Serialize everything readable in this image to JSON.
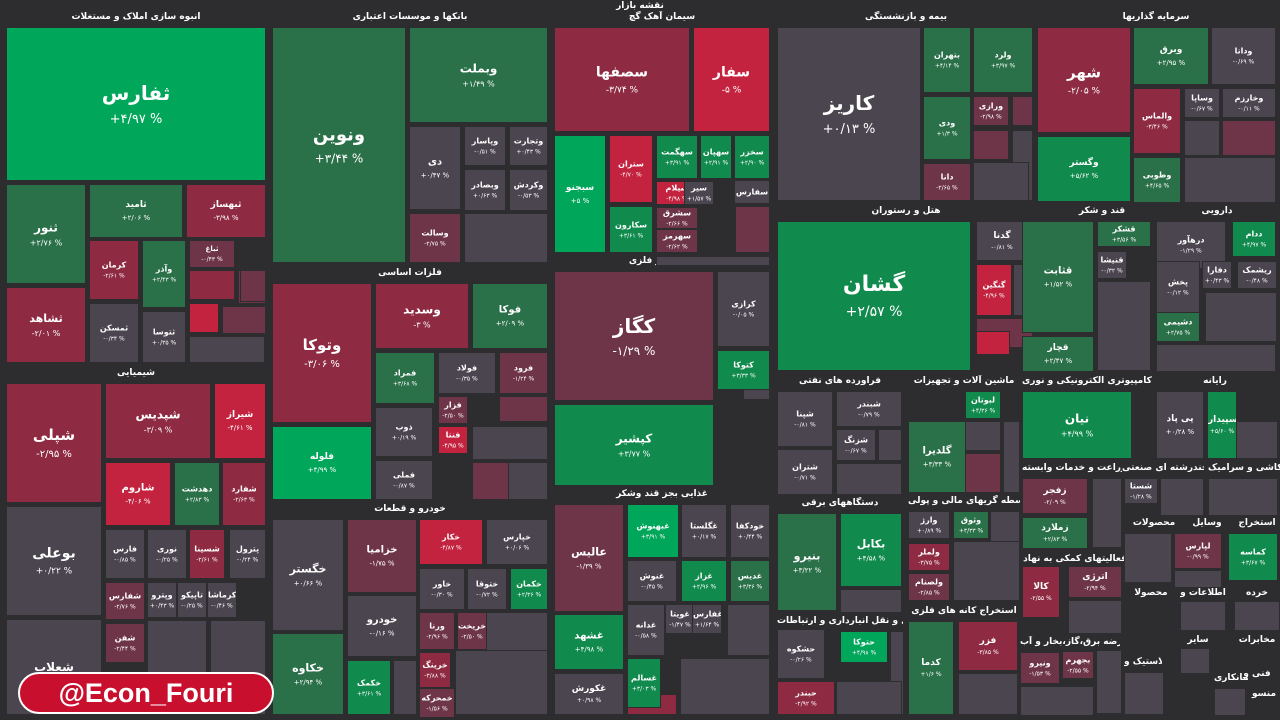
{
  "chart_data": {
    "type": "treemap",
    "title": "نقشه بازار",
    "colors": {
      "g3": "#00a65a",
      "g2": "#118a4d",
      "g1": "#2a7049",
      "n": "#4a454f",
      "r1": "#6e3448",
      "r2": "#8e2b42",
      "r3": "#c4233f",
      "r4": "#e3274a"
    },
    "sectors": [
      {
        "name": "انبوه سازی املاک و مستغلات",
        "tiles": [
          {
            "symbol": "ثفارس",
            "change": "+۴/۹۷ %",
            "color": "g3"
          },
          {
            "symbol": "ثنور",
            "change": "+۲/۷۶ %",
            "color": "g1"
          },
          {
            "symbol": "ثامید",
            "change": "+۲/۰۶ %",
            "color": "g1"
          },
          {
            "symbol": "ثبهساز",
            "change": "-۳/۹۸ %",
            "color": "r2"
          },
          {
            "symbol": "ثشاهد",
            "change": "-۲/۰۱ %",
            "color": "r2"
          },
          {
            "symbol": "کرمان",
            "change": "-۲/۶۱ %",
            "color": "r2"
          },
          {
            "symbol": "وآذر",
            "change": "+۲/۴۳ %",
            "color": "g1"
          },
          {
            "symbol": "ثباغ",
            "change": "-۰/۴۳ %",
            "color": "r1"
          },
          {
            "symbol": "ثمسکن",
            "change": "-۰/۳۴ %",
            "color": "n"
          },
          {
            "symbol": "ثتوسا",
            "change": "+۰/۳۵ %",
            "color": "n"
          }
        ]
      },
      {
        "name": "بانکها و موسسات اعتباری",
        "tiles": [
          {
            "symbol": "ونوین",
            "change": "+۳/۴۴ %",
            "color": "g1"
          },
          {
            "symbol": "وبملت",
            "change": "+۱/۴۹ %",
            "color": "g1"
          },
          {
            "symbol": "دی",
            "change": "+۰/۴۷ %",
            "color": "n"
          },
          {
            "symbol": "وپاسار",
            "change": "-۰/۵۱ %",
            "color": "n"
          },
          {
            "symbol": "وتجارت",
            "change": "+۰/۴۳ %",
            "color": "n"
          },
          {
            "symbol": "وبصادر",
            "change": "+۰/۶۳ %",
            "color": "n"
          },
          {
            "symbol": "وکردش",
            "change": "-۰/۵۳ %",
            "color": "n"
          },
          {
            "symbol": "وسالت",
            "change": "-۲/۷۵ %",
            "color": "r1"
          }
        ]
      },
      {
        "name": "سیمان آهک گچ",
        "tiles": [
          {
            "symbol": "سصفها",
            "change": "-۳/۷۴ %",
            "color": "r2"
          },
          {
            "symbol": "سفار",
            "change": "-۵ %",
            "color": "r3"
          },
          {
            "symbol": "سبجنو",
            "change": "+۵ %",
            "color": "g3"
          },
          {
            "symbol": "ستران",
            "change": "-۴/۷۰ %",
            "color": "r3"
          },
          {
            "symbol": "سهگمت",
            "change": "+۳/۹۱ %",
            "color": "g2"
          },
          {
            "symbol": "سهپان",
            "change": "+۲/۹۱ %",
            "color": "g2"
          },
          {
            "symbol": "سخزر",
            "change": "+۲/۹۰ %",
            "color": "g2"
          },
          {
            "symbol": "سکارون",
            "change": "+۳/۶۱ %",
            "color": "g2"
          },
          {
            "symbol": "سیلام",
            "change": "-۴/۹۸ %",
            "color": "r3"
          },
          {
            "symbol": "سشرق",
            "change": "-۲/۶۶ %",
            "color": "r1"
          },
          {
            "symbol": "سیر",
            "change": "+۱/۵۷ %",
            "color": "n"
          },
          {
            "symbol": "سهرمز",
            "change": "-۲/۶۲ %",
            "color": "r1"
          },
          {
            "symbol": "سفارس",
            "change": "",
            "color": "n"
          }
        ]
      },
      {
        "name": "بیمه و بازنشستگی",
        "tiles": [
          {
            "symbol": "کاریز",
            "change": "+۰/۱۳ %",
            "color": "n"
          },
          {
            "symbol": "بتهران",
            "change": "+۴/۱۴ %",
            "color": "g1"
          },
          {
            "symbol": "ولرد",
            "change": "+۳/۹۷ %",
            "color": "g1"
          },
          {
            "symbol": "ودی",
            "change": "+۱/۳ %",
            "color": "g1"
          },
          {
            "symbol": "ورازی",
            "change": "-۲/۹۸ %",
            "color": "r1"
          },
          {
            "symbol": "دانا",
            "change": "-۲/۶۵ %",
            "color": "r1"
          }
        ]
      },
      {
        "name": "سرمایه گذاریها",
        "tiles": [
          {
            "symbol": "شهر",
            "change": "-۲/۰۵ %",
            "color": "r2"
          },
          {
            "symbol": "وبرق",
            "change": "+۲/۹۵ %",
            "color": "g1"
          },
          {
            "symbol": "وداتا",
            "change": "-۰/۶۹ %",
            "color": "n"
          },
          {
            "symbol": "والماس",
            "change": "-۳/۴۶ %",
            "color": "r2"
          },
          {
            "symbol": "وساپا",
            "change": "-۰/۶۷ %",
            "color": "n"
          },
          {
            "symbol": "وخارزم",
            "change": "-۰/۱۱ %",
            "color": "n"
          },
          {
            "symbol": "وگستر",
            "change": "+۵/۶۲ %",
            "color": "g2"
          },
          {
            "symbol": "وطوبی",
            "change": "+۴/۶۵ %",
            "color": "g1"
          }
        ]
      },
      {
        "name": "فلزات اساسی",
        "tiles": [
          {
            "symbol": "وتوکا",
            "change": "-۳/۰۶ %",
            "color": "r2"
          },
          {
            "symbol": "وسدید",
            "change": "-۳ %",
            "color": "r2"
          },
          {
            "symbol": "فوکا",
            "change": "+۲/۰۹ %",
            "color": "g1"
          },
          {
            "symbol": "فمراد",
            "change": "+۳/۶۸ %",
            "color": "g1"
          },
          {
            "symbol": "فولاد",
            "change": "-۰/۳۵ %",
            "color": "n"
          },
          {
            "symbol": "فرود",
            "change": "-۱/۲۴ %",
            "color": "r1"
          },
          {
            "symbol": "فلوله",
            "change": "+۴/۹۹ %",
            "color": "g3"
          },
          {
            "symbol": "ذوب",
            "change": "+۰/۱۹ %",
            "color": "n"
          },
          {
            "symbol": "فزار",
            "change": "-۲/۵۰ %",
            "color": "r1"
          },
          {
            "symbol": "فنتا",
            "change": "-۴/۹۵ %",
            "color": "r3"
          },
          {
            "symbol": "فملی",
            "change": "-۰/۸۷ %",
            "color": "n"
          }
        ]
      },
      {
        "name": "کانی غیر فلزی",
        "tiles": [
          {
            "symbol": "کگاز",
            "change": "-۱/۲۹ %",
            "color": "r1"
          },
          {
            "symbol": "کرازی",
            "change": "-۰/۰۵ %",
            "color": "n"
          },
          {
            "symbol": "کتوکا",
            "change": "+۳/۳۳ %",
            "color": "g2"
          },
          {
            "symbol": "کپشیر",
            "change": "+۳/۷۷ %",
            "color": "g2"
          }
        ]
      },
      {
        "name": "هتل و رستوران",
        "tiles": [
          {
            "symbol": "گشان",
            "change": "+۲/۵۷ %",
            "color": "g2"
          },
          {
            "symbol": "گدنا",
            "change": "-۰/۸۱ %",
            "color": "n"
          },
          {
            "symbol": "گنگین",
            "change": "-۴/۹۶ %",
            "color": "r3"
          }
        ]
      },
      {
        "name": "قند و شکر",
        "tiles": [
          {
            "symbol": "قثابت",
            "change": "+۱/۵۲ %",
            "color": "g1"
          },
          {
            "symbol": "قشکر",
            "change": "+۳/۵۶ %",
            "color": "g1"
          },
          {
            "symbol": "قنیشا",
            "change": "-۰/۳۲ %",
            "color": "n"
          },
          {
            "symbol": "قچار",
            "change": "+۲/۴۷ %",
            "color": "g1"
          }
        ]
      },
      {
        "name": "دارویی",
        "tiles": [
          {
            "symbol": "درهآور",
            "change": "-۱/۲۹ %",
            "color": "n"
          },
          {
            "symbol": "ددام",
            "change": "+۴/۹۷ %",
            "color": "g2"
          },
          {
            "symbol": "پخش",
            "change": "-۰/۱۲ %",
            "color": "n"
          },
          {
            "symbol": "دفارا",
            "change": "+۰/۴۳ %",
            "color": "n"
          },
          {
            "symbol": "ریشمک",
            "change": "-۰/۴۸ %",
            "color": "n"
          },
          {
            "symbol": "دشیمی",
            "change": "+۲/۷۵ %",
            "color": "g1"
          }
        ]
      },
      {
        "name": "شیمیایی",
        "tiles": [
          {
            "symbol": "شپلی",
            "change": "-۲/۹۵ %",
            "color": "r2"
          },
          {
            "symbol": "شپدیس",
            "change": "-۳/۰۹ %",
            "color": "r2"
          },
          {
            "symbol": "شیراز",
            "change": "-۴/۶۱ %",
            "color": "r3"
          },
          {
            "symbol": "شاروم",
            "change": "-۴/۰۶ %",
            "color": "r3"
          },
          {
            "symbol": "دهدشت",
            "change": "+۲/۸۳ %",
            "color": "g1"
          },
          {
            "symbol": "شفارد",
            "change": "-۲/۶۳ %",
            "color": "r2"
          },
          {
            "symbol": "بوعلی",
            "change": "+۰/۲۲ %",
            "color": "n"
          },
          {
            "symbol": "فارس",
            "change": "-۰/۸۵ %",
            "color": "n"
          },
          {
            "symbol": "نوری",
            "change": "-۰/۲۵ %",
            "color": "n"
          },
          {
            "symbol": "شسینا",
            "change": "-۲/۶۱ %",
            "color": "r2"
          },
          {
            "symbol": "پترول",
            "change": "-۰/۲۴ %",
            "color": "n"
          },
          {
            "symbol": "شفارس",
            "change": "-۲/۷۶ %",
            "color": "r1"
          },
          {
            "symbol": "وپترو",
            "change": "+۰/۴۳ %",
            "color": "n"
          },
          {
            "symbol": "تاپیکو",
            "change": "-۰/۲۵ %",
            "color": "n"
          },
          {
            "symbol": "کرماشا",
            "change": "-۰/۴۶ %",
            "color": "n"
          },
          {
            "symbol": "شعلاب",
            "change": "",
            "color": "n"
          },
          {
            "symbol": "شفن",
            "change": "-۲/۴۴ %",
            "color": "r1"
          }
        ]
      },
      {
        "name": "خودرو و قطعات",
        "tiles": [
          {
            "symbol": "خگستر",
            "change": "+۰/۶۶ %",
            "color": "n"
          },
          {
            "symbol": "خزامیا",
            "change": "-۱/۷۵ %",
            "color": "r1"
          },
          {
            "symbol": "خکار",
            "change": "-۴/۸۷ %",
            "color": "r3"
          },
          {
            "symbol": "خپارس",
            "change": "+۰/۰۶ %",
            "color": "n"
          },
          {
            "symbol": "خاور",
            "change": "-۰/۳۰ %",
            "color": "n"
          },
          {
            "symbol": "ختوقا",
            "change": "-۰/۷۲ %",
            "color": "n"
          },
          {
            "symbol": "خکمان",
            "change": "+۲/۳۶ %",
            "color": "g2"
          },
          {
            "symbol": "خودرو",
            "change": "-۰/۱۶ %",
            "color": "n"
          },
          {
            "symbol": "ورنا",
            "change": "-۲/۹۶ %",
            "color": "r1"
          },
          {
            "symbol": "خریخت",
            "change": "-۲/۵۰ %",
            "color": "r1"
          },
          {
            "symbol": "خکاوه",
            "change": "+۲/۹۴ %",
            "color": "g1"
          },
          {
            "symbol": "خکمک",
            "change": "+۳/۶۱ %",
            "color": "g2"
          },
          {
            "symbol": "خرینگ",
            "change": "-۳/۸۸ %",
            "color": "r2"
          },
          {
            "symbol": "خمحرکه",
            "change": "-۱/۵۶ %",
            "color": "r1"
          }
        ]
      },
      {
        "name": "غذایی بجز قند وشکر",
        "tiles": [
          {
            "symbol": "عالیس",
            "change": "-۱/۳۹ %",
            "color": "r1"
          },
          {
            "symbol": "غبهنوش",
            "change": "+۳/۹۱ %",
            "color": "g3"
          },
          {
            "symbol": "غگلستا",
            "change": "+۰/۱۷ %",
            "color": "n"
          },
          {
            "symbol": "خودکفا",
            "change": "+۰/۴۴ %",
            "color": "n"
          },
          {
            "symbol": "غنوش",
            "change": "-۰/۴۵ %",
            "color": "n"
          },
          {
            "symbol": "غزاز",
            "change": "+۲/۹۶ %",
            "color": "g2"
          },
          {
            "symbol": "غدیس",
            "change": "+۳/۳۶ %",
            "color": "g1"
          },
          {
            "symbol": "غدانه",
            "change": "-۰/۵۸ %",
            "color": "n"
          },
          {
            "symbol": "غویتا",
            "change": "-۱/۴۷ %",
            "color": "n"
          },
          {
            "symbol": "غفارس",
            "change": "+۱/۶۴ %",
            "color": "n"
          },
          {
            "symbol": "غشهد",
            "change": "+۴/۹۸ %",
            "color": "g2"
          },
          {
            "symbol": "غسالم",
            "change": "+۳/۰۳ %",
            "color": "g2"
          },
          {
            "symbol": "غکورش",
            "change": "+۰/۹۸ %",
            "color": "n"
          }
        ]
      },
      {
        "name": "فراورده های نفتی",
        "tiles": [
          {
            "symbol": "شپنا",
            "change": "-۰/۸۱ %",
            "color": "n"
          },
          {
            "symbol": "شبندر",
            "change": "-۰/۷۹ %",
            "color": "n"
          },
          {
            "symbol": "شزنگ",
            "change": "-۰/۶۷ %",
            "color": "n"
          },
          {
            "symbol": "شتران",
            "change": "-۰/۷۱ %",
            "color": "n"
          }
        ]
      },
      {
        "name": "ماشین آلات و تجهیزات",
        "tiles": [
          {
            "symbol": "لبوتان",
            "change": "+۴/۳۶ %",
            "color": "g2"
          },
          {
            "symbol": "گلدیرا",
            "change": "+۳/۳۳ %",
            "color": "g1"
          }
        ]
      },
      {
        "name": "محصولات کامپیوتری الکترونیکی و نوری",
        "tiles": [
          {
            "symbol": "نیان",
            "change": "+۴/۹۹ %",
            "color": "g2"
          }
        ]
      },
      {
        "name": "رایانه",
        "tiles": [
          {
            "symbol": "پی پاد",
            "change": "+۰/۲۸ %",
            "color": "n"
          },
          {
            "symbol": "سپیدار",
            "change": "+۵/۶۰ %",
            "color": "g2"
          }
        ]
      },
      {
        "name": "دستگاههای برقی",
        "tiles": [
          {
            "symbol": "بنیرو",
            "change": "+۳/۲۲ %",
            "color": "g1"
          },
          {
            "symbol": "بکابل",
            "change": "+۴/۵۸ %",
            "color": "g2"
          }
        ]
      },
      {
        "name": "واسطه گریهای مالی و پولی",
        "tiles": [
          {
            "symbol": "وثوق",
            "change": "+۳/۳۳ %",
            "color": "g1"
          },
          {
            "symbol": "وارژ",
            "change": "+۰/۸۹ %",
            "color": "n"
          },
          {
            "symbol": "ولملر",
            "change": "-۳/۷۵ %",
            "color": "r2"
          },
          {
            "symbol": "ولصنام",
            "change": "-۲/۸۵ %",
            "color": "r1"
          }
        ]
      },
      {
        "name": "زراعت و خدمات وابسته",
        "tiles": [
          {
            "symbol": "زفجر",
            "change": "-۲/۰۹ %",
            "color": "r1"
          },
          {
            "symbol": "زملارد",
            "change": "+۲/۸۳ %",
            "color": "g1"
          }
        ]
      },
      {
        "name": "چندرشته ای صنعتی",
        "tiles": [
          {
            "symbol": "شستا",
            "change": "-۱/۲۸ %",
            "color": "n"
          }
        ]
      },
      {
        "name": "کاشی و سرامیک",
        "tiles": []
      },
      {
        "name": "فعالیتهای کمکی به نهاد",
        "tiles": [
          {
            "symbol": "اترژی",
            "change": "-۲/۹۴ %",
            "color": "r1"
          },
          {
            "symbol": "کالا",
            "change": "-۲/۵۵ %",
            "color": "r2"
          }
        ]
      },
      {
        "name": "حمل و نقل انبارداری و ارتباطات",
        "tiles": [
          {
            "symbol": "حتوکا",
            "change": "+۴/۹۸ %",
            "color": "g3"
          },
          {
            "symbol": "حشکوه",
            "change": "-۰/۲۶ %",
            "color": "n"
          },
          {
            "symbol": "حبندر",
            "change": "-۲/۹۲ %",
            "color": "r2"
          }
        ]
      },
      {
        "name": "استخراج کانه های فلزی",
        "tiles": [
          {
            "symbol": "کدما",
            "change": "+۱/۶ %",
            "color": "g1"
          },
          {
            "symbol": "فزر",
            "change": "-۳/۸۵ %",
            "color": "r2"
          }
        ]
      },
      {
        "name": "عرضه برق،گاز،بخار و آب",
        "tiles": [
          {
            "symbol": "بجهرم",
            "change": "-۲/۵۵ %",
            "color": "r1"
          },
          {
            "symbol": "ونیرو",
            "change": "-۱/۵۳ %",
            "color": "r1"
          }
        ]
      },
      {
        "name": "وسایل",
        "tiles": [
          {
            "symbol": "لپارس",
            "change": "-۰/۹۹ %",
            "color": "r1"
          },
          {
            "symbol": "کماسه",
            "change": "+۳/۶۷ %",
            "color": "g2"
          }
        ]
      },
      {
        "name": "محصولات",
        "tiles": []
      },
      {
        "name": "استخراج",
        "tiles": []
      },
      {
        "name": "اطلاعات و",
        "tiles": []
      },
      {
        "name": "خرده",
        "tiles": []
      },
      {
        "name": "مخابرات",
        "tiles": []
      },
      {
        "name": "محصولا",
        "tiles": []
      },
      {
        "name": "لاستیک و",
        "tiles": []
      },
      {
        "name": "فنی و",
        "tiles": []
      },
      {
        "name": "پیمانکاری",
        "tiles": []
      },
      {
        "name": "منسو",
        "tiles": []
      },
      {
        "name": "سایر",
        "tiles": []
      }
    ]
  },
  "watermark": "@Econ_Fouri"
}
